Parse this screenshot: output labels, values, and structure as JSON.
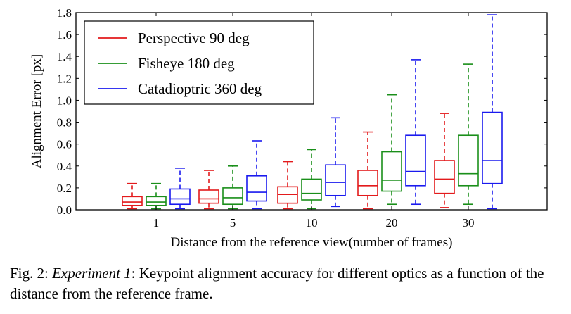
{
  "chart_data": {
    "type": "box",
    "title": "",
    "xlabel": "Distance from the reference view(number of frames)",
    "ylabel": "Alignment Error [px]",
    "ylim": [
      0.0,
      1.8
    ],
    "yticks": [
      "0.0",
      "0.2",
      "0.4",
      "0.6",
      "0.8",
      "1.0",
      "1.2",
      "1.4",
      "1.6",
      "1.8"
    ],
    "categories": [
      "1",
      "5",
      "10",
      "20",
      "30"
    ],
    "legend_position": "top-left",
    "grid": false,
    "series": [
      {
        "name": "Perspective 90 deg",
        "color": "#e31a1c",
        "boxes": [
          {
            "whislo": 0.01,
            "q1": 0.04,
            "med": 0.07,
            "q3": 0.12,
            "whishi": 0.24
          },
          {
            "whislo": 0.01,
            "q1": 0.06,
            "med": 0.1,
            "q3": 0.18,
            "whishi": 0.36
          },
          {
            "whislo": 0.01,
            "q1": 0.06,
            "med": 0.14,
            "q3": 0.21,
            "whishi": 0.44
          },
          {
            "whislo": 0.01,
            "q1": 0.13,
            "med": 0.22,
            "q3": 0.36,
            "whishi": 0.71
          },
          {
            "whislo": 0.02,
            "q1": 0.15,
            "med": 0.28,
            "q3": 0.45,
            "whishi": 0.88
          }
        ]
      },
      {
        "name": "Fisheye 180 deg",
        "color": "#1a8f1a",
        "boxes": [
          {
            "whislo": 0.01,
            "q1": 0.04,
            "med": 0.07,
            "q3": 0.12,
            "whishi": 0.24
          },
          {
            "whislo": 0.01,
            "q1": 0.05,
            "med": 0.11,
            "q3": 0.2,
            "whishi": 0.4
          },
          {
            "whislo": 0.01,
            "q1": 0.09,
            "med": 0.15,
            "q3": 0.28,
            "whishi": 0.55
          },
          {
            "whislo": 0.05,
            "q1": 0.17,
            "med": 0.27,
            "q3": 0.53,
            "whishi": 1.05
          },
          {
            "whislo": 0.05,
            "q1": 0.22,
            "med": 0.33,
            "q3": 0.68,
            "whishi": 1.33
          }
        ]
      },
      {
        "name": "Catadioptric 360 deg",
        "color": "#1a1aee",
        "boxes": [
          {
            "whislo": 0.01,
            "q1": 0.05,
            "med": 0.1,
            "q3": 0.19,
            "whishi": 0.38
          },
          {
            "whislo": 0.01,
            "q1": 0.08,
            "med": 0.16,
            "q3": 0.31,
            "whishi": 0.63
          },
          {
            "whislo": 0.03,
            "q1": 0.13,
            "med": 0.25,
            "q3": 0.41,
            "whishi": 0.84
          },
          {
            "whislo": 0.05,
            "q1": 0.22,
            "med": 0.35,
            "q3": 0.68,
            "whishi": 1.37
          },
          {
            "whislo": 0.01,
            "q1": 0.24,
            "med": 0.45,
            "q3": 0.89,
            "whishi": 1.78
          }
        ]
      }
    ]
  },
  "caption": {
    "label": "Fig. 2: ",
    "emphasis": "Experiment 1",
    "text": ": Keypoint alignment accuracy for different optics as a function of the distance from the reference frame."
  }
}
